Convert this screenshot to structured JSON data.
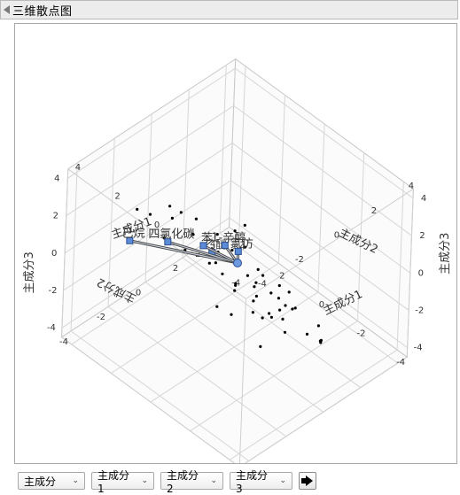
{
  "panel": {
    "title": "三维散点图"
  },
  "controls": {
    "mode": "主成分",
    "x": "主成分1",
    "y": "主成分2",
    "z": "主成分3"
  },
  "chart_data": {
    "type": "scatter",
    "title": "",
    "axes": {
      "x": {
        "label": "主成分1",
        "ticks": [
          -4,
          -2,
          0,
          2,
          4
        ],
        "range": [
          -4.5,
          4.5
        ]
      },
      "y": {
        "label": "主成分2",
        "ticks": [
          -4,
          -2,
          0,
          2,
          4
        ],
        "range": [
          -4.5,
          4.5
        ]
      },
      "z": {
        "label": "主成分3",
        "ticks": [
          -4,
          -2,
          0,
          2,
          4
        ],
        "range": [
          -4.5,
          4.5
        ]
      }
    },
    "grid": true,
    "points": [
      {
        "x": -2.4,
        "y": -1.2,
        "z": -0.3
      },
      {
        "x": -2.1,
        "y": -1.4,
        "z": -0.1
      },
      {
        "x": -1.8,
        "y": -0.9,
        "z": 0.2
      },
      {
        "x": -2.6,
        "y": -0.3,
        "z": -0.8
      },
      {
        "x": -3.0,
        "y": -0.6,
        "z": -1.0
      },
      {
        "x": -2.8,
        "y": -1.7,
        "z": -1.2
      },
      {
        "x": -1.4,
        "y": -1.8,
        "z": -0.5
      },
      {
        "x": -1.1,
        "y": -1.3,
        "z": 0.5
      },
      {
        "x": -0.8,
        "y": -1.0,
        "z": -0.2
      },
      {
        "x": -0.5,
        "y": -1.6,
        "z": -0.9
      },
      {
        "x": -3.2,
        "y": 0.4,
        "z": -1.6
      },
      {
        "x": -3.3,
        "y": 0.9,
        "z": -1.4
      },
      {
        "x": -3.1,
        "y": 1.3,
        "z": -2.6
      },
      {
        "x": -2.9,
        "y": 1.5,
        "z": -3.0
      },
      {
        "x": -2.7,
        "y": 1.7,
        "z": -3.2
      },
      {
        "x": -1.9,
        "y": 0.6,
        "z": -1.2
      },
      {
        "x": -1.6,
        "y": 0.2,
        "z": -1.8
      },
      {
        "x": -1.2,
        "y": 0.5,
        "z": -2.1
      },
      {
        "x": -0.9,
        "y": 0.9,
        "z": -1.5
      },
      {
        "x": -0.6,
        "y": 0.3,
        "z": -1.0
      },
      {
        "x": -0.3,
        "y": -0.4,
        "z": -0.6
      },
      {
        "x": 0.1,
        "y": -0.7,
        "z": -0.2
      },
      {
        "x": 0.4,
        "y": -1.1,
        "z": 0.4
      },
      {
        "x": 0.7,
        "y": -1.5,
        "z": 0.9
      },
      {
        "x": 1.0,
        "y": -1.8,
        "z": 1.1
      },
      {
        "x": 1.3,
        "y": -2.1,
        "z": 1.4
      },
      {
        "x": 1.6,
        "y": -2.3,
        "z": 1.6
      },
      {
        "x": 0.2,
        "y": 0.6,
        "z": 0.3
      },
      {
        "x": 0.5,
        "y": 0.2,
        "z": -0.4
      },
      {
        "x": 0.8,
        "y": -0.2,
        "z": 0.1
      },
      {
        "x": 1.1,
        "y": 0.4,
        "z": -0.8
      },
      {
        "x": -0.2,
        "y": 1.2,
        "z": -1.3
      },
      {
        "x": 0.3,
        "y": 1.4,
        "z": -2.2
      },
      {
        "x": -0.5,
        "y": 1.8,
        "z": -2.0
      },
      {
        "x": -1.5,
        "y": 1.6,
        "z": -2.3
      },
      {
        "x": -1.0,
        "y": 2.0,
        "z": -3.0
      },
      {
        "x": -0.2,
        "y": 2.2,
        "z": -3.8
      },
      {
        "x": 0.6,
        "y": 1.0,
        "z": 0.9
      },
      {
        "x": 1.4,
        "y": -0.8,
        "z": 1.8
      },
      {
        "x": 1.8,
        "y": -1.2,
        "z": 2.1
      },
      {
        "x": 2.1,
        "y": -1.5,
        "z": 2.4
      },
      {
        "x": 2.6,
        "y": -2.0,
        "z": 1.9
      },
      {
        "x": 2.9,
        "y": -2.4,
        "z": 2.2
      },
      {
        "x": 2.4,
        "y": -1.0,
        "z": 1.2
      },
      {
        "x": 0.9,
        "y": 0.8,
        "z": 0.5
      },
      {
        "x": -0.7,
        "y": -0.2,
        "z": 0.0
      },
      {
        "x": -1.3,
        "y": -0.5,
        "z": -0.7
      },
      {
        "x": -2.0,
        "y": 0.1,
        "z": -0.4
      },
      {
        "x": 0.0,
        "y": -1.2,
        "z": 0.8
      },
      {
        "x": 0.6,
        "y": -0.5,
        "z": 1.4
      },
      {
        "x": 1.2,
        "y": -0.1,
        "z": -0.1
      },
      {
        "x": -0.4,
        "y": 0.7,
        "z": -0.5
      },
      {
        "x": 1.7,
        "y": -0.6,
        "z": 0.6
      },
      {
        "x": 2.0,
        "y": -0.3,
        "z": 0.2
      },
      {
        "x": 0.2,
        "y": -0.1,
        "z": 0.6
      },
      {
        "x": -1.7,
        "y": 1.0,
        "z": -0.9
      }
    ],
    "vectors": [
      {
        "name": "乙醚",
        "x": -0.2,
        "y": -0.7,
        "z": 0.8
      },
      {
        "name": "1-辛醇",
        "x": -0.05,
        "y": -0.3,
        "z": 0.55
      },
      {
        "name": "己烷",
        "x": 0.8,
        "y": -1.1,
        "z": 0.5
      },
      {
        "name": "四氯化碳",
        "x": 0.8,
        "y": -0.4,
        "z": 0.02
      },
      {
        "name": "苯",
        "x": 0.75,
        "y": 0.2,
        "z": -0.4
      },
      {
        "name": "氯仿",
        "x": 0.8,
        "y": 0.9,
        "z": -1.0
      }
    ]
  }
}
